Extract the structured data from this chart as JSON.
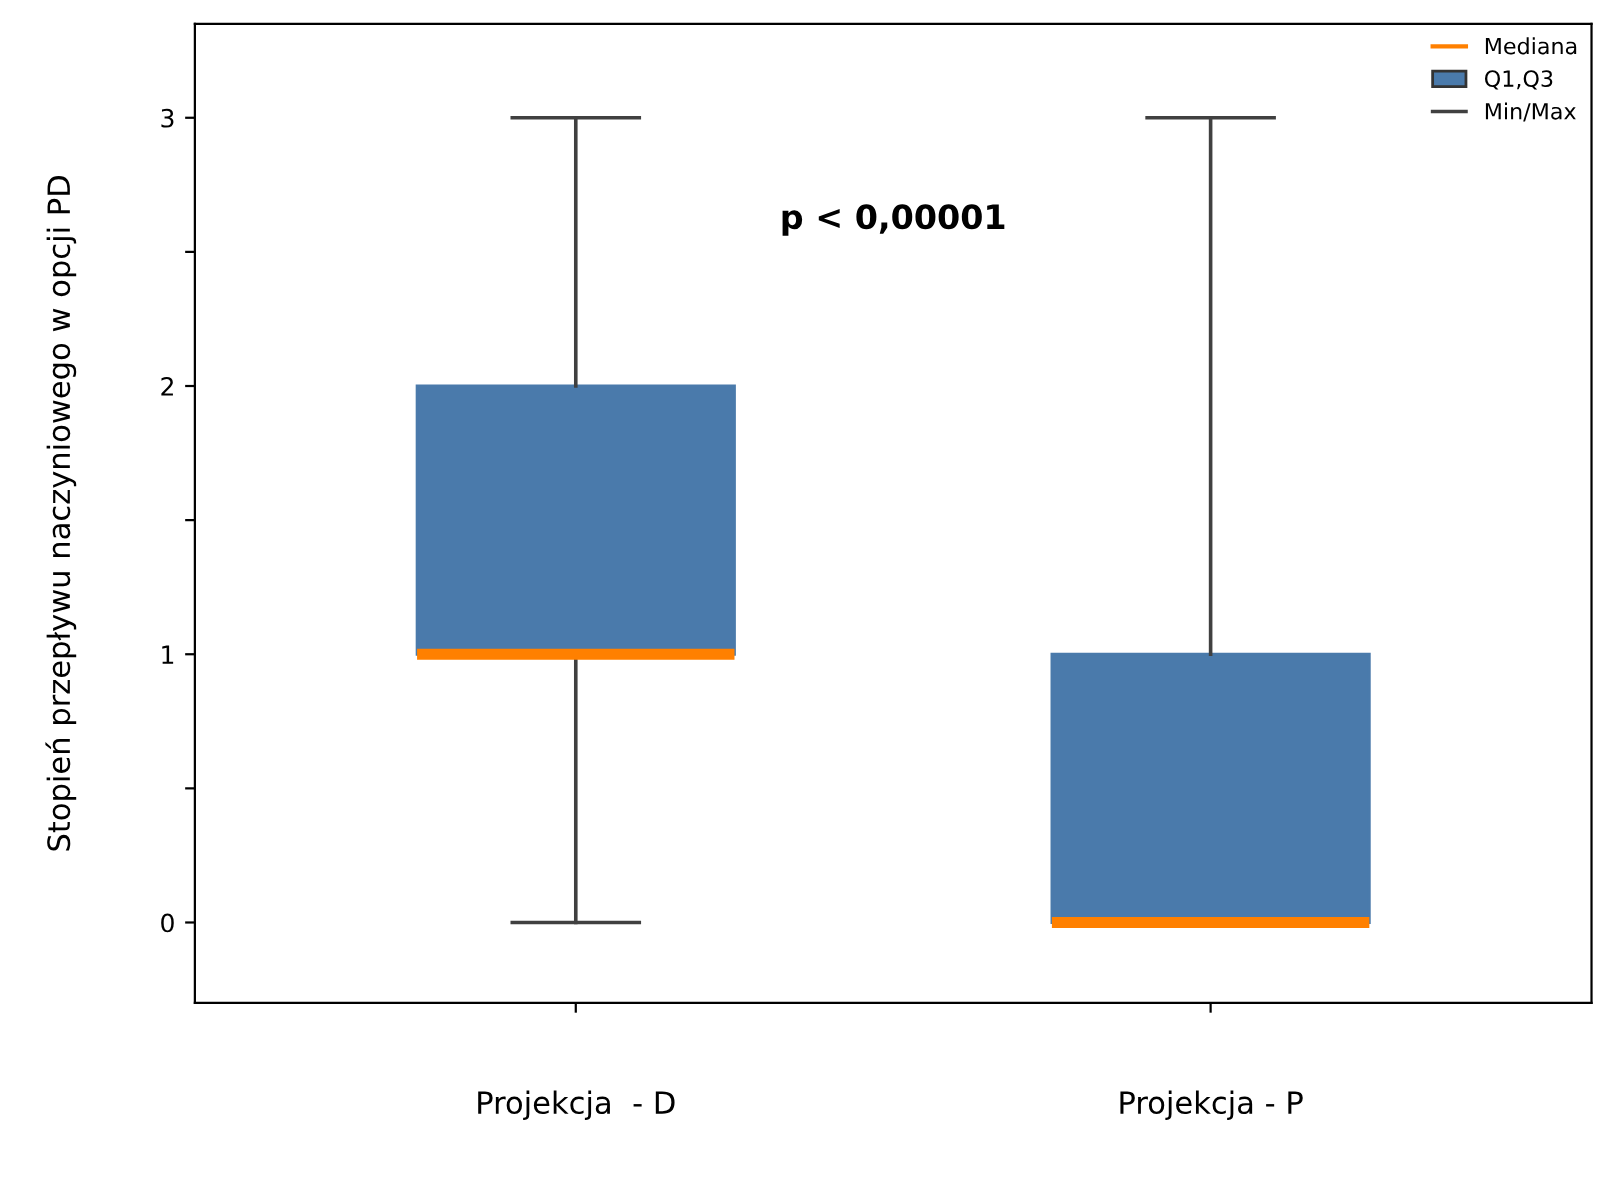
{
  "chart_data": {
    "type": "box",
    "ylabel": "Stopień przepływu naczyniowego w opcji PD",
    "categories": [
      "Projekcja  - D",
      "Projekcja - P"
    ],
    "series": [
      {
        "name": "Q1,Q3",
        "color": "#4a7aab",
        "boxes": [
          {
            "low": 0,
            "q1": 1,
            "median": 1,
            "q3": 2,
            "high": 3
          },
          {
            "low": 0,
            "q1": 0,
            "median": 0,
            "q3": 1,
            "high": 3
          }
        ]
      }
    ],
    "annotations": [
      {
        "text": "p < 0,00001"
      },
      "Mediana",
      "Min/Max"
    ],
    "ylim": [
      -0.3,
      3.35
    ],
    "yticks": [
      0,
      {
        "value": 0.5,
        "label": null
      },
      1,
      {
        "value": 1.5,
        "label": null
      },
      2,
      {
        "value": 2.5,
        "label": null
      },
      3
    ],
    "grid": false,
    "legend": "top right"
  }
}
